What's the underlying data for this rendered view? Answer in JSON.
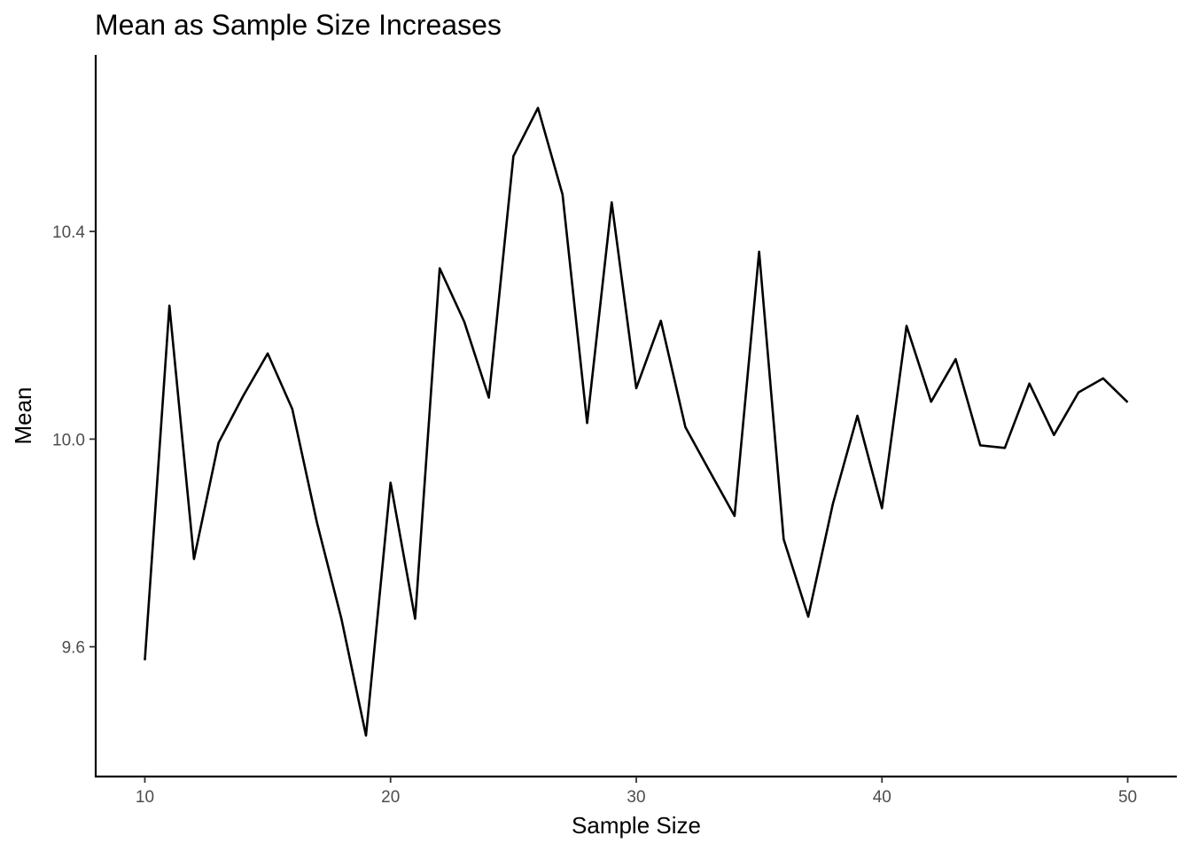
{
  "chart_data": {
    "type": "line",
    "title": "Mean as Sample Size Increases",
    "xlabel": "Sample Size",
    "ylabel": "Mean",
    "xlim": [
      8,
      52
    ],
    "ylim": [
      9.35,
      10.74
    ],
    "x_ticks": [
      10,
      20,
      30,
      40,
      50
    ],
    "x_tick_labels": [
      "10",
      "20",
      "30",
      "40",
      "50"
    ],
    "y_ticks": [
      9.6,
      10.0,
      10.4
    ],
    "y_tick_labels": [
      "9.6",
      "10.0",
      "10.4"
    ],
    "grid": false,
    "legend": "none",
    "line_color": "#000000",
    "series": [
      {
        "x": [
          10,
          11,
          12,
          13,
          14,
          15,
          16,
          17,
          18,
          19,
          20,
          21,
          22,
          23,
          24,
          25,
          26,
          27,
          28,
          29,
          30,
          31,
          32,
          33,
          34,
          35,
          36,
          37,
          38,
          39,
          40,
          41,
          42,
          43,
          44,
          45,
          46,
          47,
          48,
          49,
          50
        ],
        "values": [
          9.574,
          10.257,
          9.769,
          9.993,
          10.083,
          10.165,
          10.058,
          9.84,
          9.654,
          9.429,
          9.916,
          9.654,
          10.329,
          10.226,
          10.08,
          10.545,
          10.638,
          10.471,
          10.031,
          10.456,
          10.098,
          10.228,
          10.023,
          9.937,
          9.852,
          10.361,
          9.807,
          9.658,
          9.875,
          10.045,
          9.867,
          10.218,
          10.072,
          10.154,
          9.988,
          9.983,
          10.107,
          10.008,
          10.09,
          10.117,
          10.071
        ]
      }
    ]
  }
}
